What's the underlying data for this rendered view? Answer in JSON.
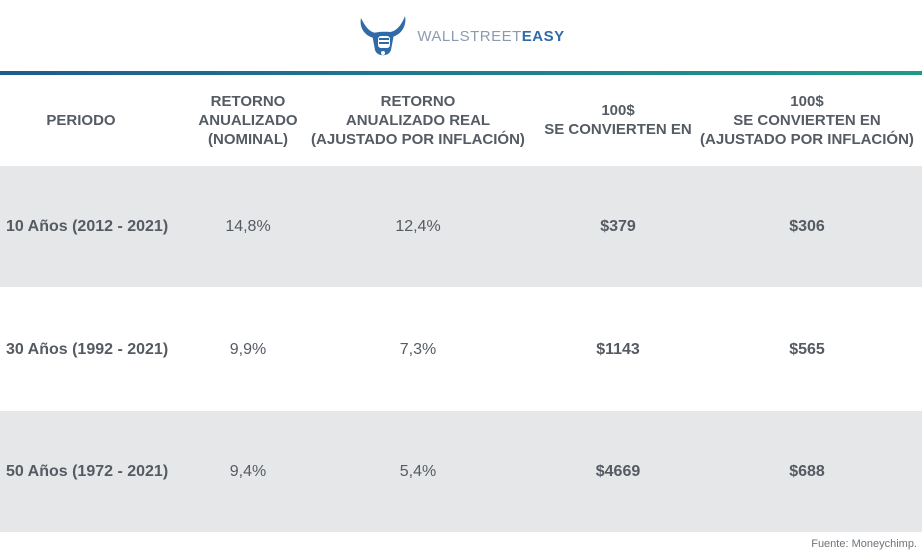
{
  "brand": {
    "name_prefix": "WALLSTREET",
    "name_suffix": "EASY",
    "primary_color": "#2f6aa9",
    "accent_color": "#1e9a8a",
    "text_color": "#555b63",
    "row_shade_color": "#e6e7e8"
  },
  "table": {
    "headers": [
      "PERIODO",
      "RETORNO\nANUALIZADO\n(NOMINAL)",
      "RETORNO\nANUALIZADO REAL\n(AJUSTADO POR INFLACIÓN)",
      "100$\nSE CONVIERTEN EN",
      "100$\nSE CONVIERTEN EN\n(AJUSTADO POR INFLACIÓN)"
    ],
    "rows": [
      {
        "period": "10 Años (2012 - 2021)",
        "nominal": "14,8%",
        "real": "12,4%",
        "becomes": "$379",
        "becomes_real": "$306"
      },
      {
        "period": "30 Años (1992 - 2021)",
        "nominal": "9,9%",
        "real": "7,3%",
        "becomes": "$1143",
        "becomes_real": "$565"
      },
      {
        "period": "50 Años (1972 - 2021)",
        "nominal": "9,4%",
        "real": "5,4%",
        "becomes": "$4669",
        "becomes_real": "$688"
      }
    ]
  },
  "source": "Fuente: Moneychimp."
}
